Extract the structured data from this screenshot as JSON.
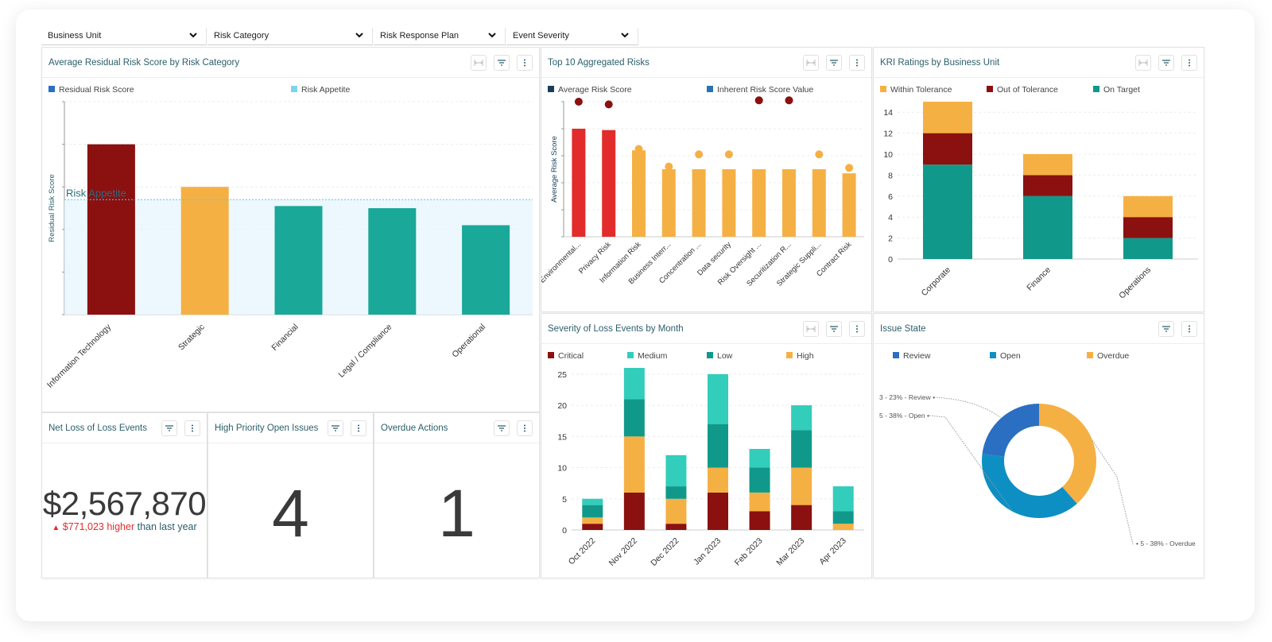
{
  "filters": {
    "business_unit": "Business Unit",
    "risk_category": "Risk Category",
    "risk_response_plan": "Risk Response Plan",
    "event_severity": "Event Severity"
  },
  "colors": {
    "teal": "#1aa899",
    "orange": "#f5b044",
    "darkred": "#8b1010",
    "red": "#e22c2c",
    "mint": "#33cdbb",
    "green": "#10998a",
    "navy": "#1a3e58",
    "blue": "#2a6fc2",
    "sky": "#0e8fc4",
    "lightblue": "#7ed3f0"
  },
  "p1": {
    "title": "Average Residual Risk Score by Risk Category",
    "legend": [
      "Residual Risk Score",
      "Risk Appetite"
    ],
    "ylabel": "Residual Risk Score",
    "appetite_label": "Risk Appetite"
  },
  "p2": {
    "title": "Top 10 Aggregated Risks",
    "legend": [
      "Average Risk Score",
      "Inherent Risk Score Value"
    ],
    "ylabel": "Average Risk Score"
  },
  "p3": {
    "title": "KRI Ratings by Business Unit",
    "legend": [
      "Within Tolerance",
      "Out of Tolerance",
      "On Target"
    ]
  },
  "p4": {
    "title": "Severity of Loss Events by Month",
    "legend": [
      "Critical",
      "Medium",
      "Low",
      "High"
    ]
  },
  "p5": {
    "title": "Issue State",
    "legend": [
      "Review",
      "Open",
      "Overdue"
    ],
    "labels": [
      "3 - 23% - Review",
      "5 - 38% - Open",
      "5 - 38% - Overdue"
    ]
  },
  "kpi": {
    "net_loss": {
      "title": "Net Loss of Loss Events",
      "value": "$2,567,870",
      "delta": "$771,023 higher",
      "delta_suffix": "than last year"
    },
    "high_priority": {
      "title": "High Priority Open Issues",
      "value": "4"
    },
    "overdue": {
      "title": "Overdue Actions",
      "value": "1"
    }
  },
  "chart_data": [
    {
      "id": "residual",
      "type": "bar",
      "title": "Average Residual Risk Score by Risk Category",
      "ylabel": "Residual Risk Score",
      "ylim": [
        0,
        10
      ],
      "categories": [
        "Information Technology",
        "Strategic",
        "Financial",
        "Legal / Compliance",
        "Operational"
      ],
      "values": [
        8,
        6,
        5.1,
        5,
        4.2
      ],
      "risk_appetite": 5.4,
      "colors": [
        "#8b1010",
        "#f5b044",
        "#1aa899",
        "#1aa899",
        "#1aa899"
      ]
    },
    {
      "id": "top10",
      "type": "bar",
      "title": "Top 10 Aggregated Risks",
      "ylabel": "Average Risk Score",
      "ylim": [
        0,
        5
      ],
      "categories": [
        "Environmental...",
        "Privacy Risk",
        "Information Risk",
        "Business Interr...",
        "Concentration ...",
        "Data security",
        "Risk Oversight ...",
        "Securitization R...",
        "Strategic Suppli...",
        "Contract Risk"
      ],
      "series": [
        {
          "name": "Average Risk Score",
          "values": [
            4,
            3.95,
            3.2,
            2.5,
            2.5,
            2.5,
            2.5,
            2.5,
            2.5,
            2.35
          ]
        },
        {
          "name": "Inherent Risk Score Value",
          "values": [
            5,
            4.9,
            3.25,
            2.6,
            3.05,
            3.05,
            5.05,
            5.05,
            3.05,
            2.55
          ]
        }
      ],
      "colors": [
        "#e22c2c",
        "#e22c2c",
        "#f5b044",
        "#f5b044",
        "#f5b044",
        "#f5b044",
        "#f5b044",
        "#f5b044",
        "#f5b044",
        "#f5b044"
      ],
      "inherent_colors": [
        "#8b1010",
        "#8b1010",
        "#f5b044",
        "#f5b044",
        "#f5b044",
        "#f5b044",
        "#8b1010",
        "#8b1010",
        "#f5b044",
        "#f5b044"
      ]
    },
    {
      "id": "kri",
      "type": "bar",
      "stacked": true,
      "title": "KRI Ratings by Business Unit",
      "ylim": [
        0,
        15
      ],
      "yticks": [
        0,
        2,
        4,
        6,
        8,
        10,
        12,
        14
      ],
      "categories": [
        "Corporate",
        "Finance",
        "Operations"
      ],
      "series": [
        {
          "name": "On Target",
          "values": [
            9,
            6,
            2
          ],
          "color": "#10998a"
        },
        {
          "name": "Out of Tolerance",
          "values": [
            3,
            2,
            2
          ],
          "color": "#8b1010"
        },
        {
          "name": "Within Tolerance",
          "values": [
            3,
            2,
            2
          ],
          "color": "#f5b044"
        }
      ]
    },
    {
      "id": "severity",
      "type": "bar",
      "stacked": true,
      "title": "Severity of Loss Events by Month",
      "ylim": [
        0,
        26
      ],
      "yticks": [
        0,
        5,
        10,
        15,
        20,
        25
      ],
      "categories": [
        "Oct 2022",
        "Nov 2022",
        "Dec 2022",
        "Jan 2023",
        "Feb 2023",
        "Mar 2023",
        "Apr 2023"
      ],
      "series": [
        {
          "name": "Critical",
          "values": [
            1,
            6,
            1,
            6,
            3,
            4,
            0
          ],
          "color": "#8b1010"
        },
        {
          "name": "High",
          "values": [
            1,
            9,
            4,
            4,
            3,
            6,
            1
          ],
          "color": "#f5b044"
        },
        {
          "name": "Low",
          "values": [
            2,
            6,
            2,
            7,
            4,
            6,
            2
          ],
          "color": "#10998a"
        },
        {
          "name": "Medium",
          "values": [
            1,
            5,
            5,
            8,
            3,
            4,
            4
          ],
          "color": "#33cdbb"
        }
      ]
    },
    {
      "id": "issue_state",
      "type": "pie",
      "donut": true,
      "title": "Issue State",
      "labels": [
        "Review",
        "Open",
        "Overdue"
      ],
      "values": [
        3,
        5,
        5
      ],
      "percents": [
        23,
        38,
        38
      ],
      "colors": [
        "#2a6fc2",
        "#0e8fc4",
        "#f5b044"
      ]
    }
  ]
}
